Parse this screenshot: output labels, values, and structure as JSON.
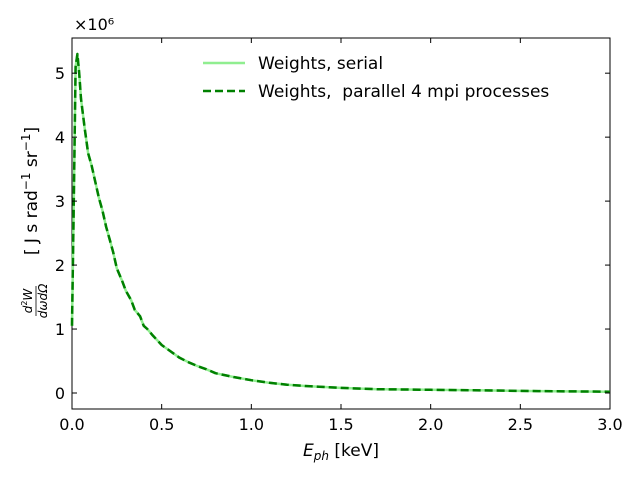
{
  "chart_data": {
    "type": "line",
    "title": "",
    "xlabel": "E_ph [keV]",
    "ylabel": "d²W/dωdΩ [ J s rad⁻¹ sr⁻¹]",
    "y_multiplier": "×10⁶",
    "xlim": [
      0.0,
      3.0
    ],
    "ylim": [
      -0.25,
      5.55
    ],
    "x_ticks": [
      0.0,
      0.5,
      1.0,
      1.5,
      2.0,
      2.5,
      3.0
    ],
    "x_tick_labels": [
      "0.0",
      "0.5",
      "1.0",
      "1.5",
      "2.0",
      "2.5",
      "3.0"
    ],
    "y_ticks": [
      0,
      1,
      2,
      3,
      4,
      5
    ],
    "y_tick_labels": [
      "0",
      "1",
      "2",
      "3",
      "4",
      "5"
    ],
    "grid": false,
    "legend_position": "top-right",
    "x": [
      0.0,
      0.01,
      0.02,
      0.03,
      0.04,
      0.05,
      0.07,
      0.09,
      0.11,
      0.13,
      0.15,
      0.17,
      0.19,
      0.21,
      0.23,
      0.25,
      0.28,
      0.3,
      0.33,
      0.35,
      0.38,
      0.4,
      0.42,
      0.45,
      0.5,
      0.55,
      0.6,
      0.65,
      0.7,
      0.75,
      0.8,
      0.9,
      1.0,
      1.1,
      1.2,
      1.3,
      1.5,
      1.7,
      2.0,
      2.3,
      2.6,
      3.0
    ],
    "series": [
      {
        "name": "Weights, serial",
        "color": "#90ee90",
        "style": "solid",
        "values": [
          1.05,
          3.0,
          5.1,
          5.3,
          5.0,
          4.6,
          4.15,
          3.75,
          3.55,
          3.3,
          3.05,
          2.85,
          2.6,
          2.4,
          2.2,
          1.95,
          1.75,
          1.6,
          1.45,
          1.3,
          1.2,
          1.05,
          1.0,
          0.9,
          0.75,
          0.65,
          0.55,
          0.48,
          0.42,
          0.37,
          0.31,
          0.25,
          0.2,
          0.16,
          0.13,
          0.11,
          0.08,
          0.06,
          0.05,
          0.04,
          0.03,
          0.02
        ]
      },
      {
        "name": "Weights,  parallel 4 mpi processes",
        "color": "#008000",
        "style": "dashed",
        "values": [
          1.05,
          3.0,
          5.1,
          5.3,
          5.0,
          4.6,
          4.15,
          3.75,
          3.55,
          3.3,
          3.05,
          2.85,
          2.6,
          2.4,
          2.2,
          1.95,
          1.75,
          1.6,
          1.45,
          1.3,
          1.2,
          1.05,
          1.0,
          0.9,
          0.75,
          0.65,
          0.55,
          0.48,
          0.42,
          0.37,
          0.31,
          0.25,
          0.2,
          0.16,
          0.13,
          0.11,
          0.08,
          0.06,
          0.05,
          0.04,
          0.03,
          0.02
        ]
      }
    ]
  }
}
